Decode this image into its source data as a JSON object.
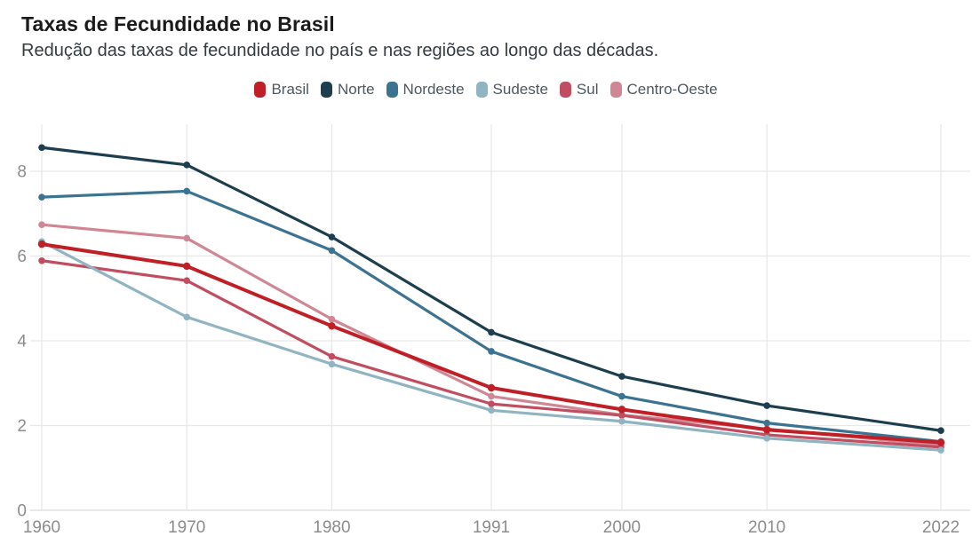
{
  "chart_data": {
    "type": "line",
    "title": "Taxas de Fecundidade no Brasil",
    "subtitle": "Redução das taxas de fecundidade no país e nas regiões ao longo das décadas.",
    "x": [
      1960,
      1970,
      1980,
      1991,
      2000,
      2010,
      2022
    ],
    "x_tick_labels": [
      "1960",
      "1970",
      "1980",
      "1991",
      "2000",
      "2010",
      "2022"
    ],
    "y_ticks": [
      0,
      2,
      4,
      6,
      8
    ],
    "y_tick_labels": [
      "0",
      "2",
      "4",
      "6",
      "8"
    ],
    "ylim": [
      0,
      9
    ],
    "x_axis_type": "linear",
    "grid": true,
    "markers": true,
    "legend_position": "top-center",
    "series": [
      {
        "name": "Brasil",
        "color": "#c11f26",
        "values": [
          6.28,
          5.76,
          4.35,
          2.89,
          2.38,
          1.9,
          1.6
        ]
      },
      {
        "name": "Norte",
        "color": "#1d3e4e",
        "values": [
          8.56,
          8.15,
          6.45,
          4.2,
          3.16,
          2.47,
          1.88
        ]
      },
      {
        "name": "Nordeste",
        "color": "#3b7390",
        "values": [
          7.39,
          7.53,
          6.13,
          3.75,
          2.69,
          2.06,
          1.62
        ]
      },
      {
        "name": "Sudeste",
        "color": "#90b4c1",
        "values": [
          6.34,
          4.56,
          3.45,
          2.36,
          2.1,
          1.7,
          1.42
        ]
      },
      {
        "name": "Sul",
        "color": "#c04e60",
        "values": [
          5.89,
          5.42,
          3.63,
          2.51,
          2.24,
          1.78,
          1.49
        ]
      },
      {
        "name": "Centro-Oeste",
        "color": "#d08795",
        "values": [
          6.74,
          6.42,
          4.51,
          2.69,
          2.25,
          1.92,
          1.53
        ]
      }
    ]
  },
  "colors": {
    "background": "#ffffff",
    "grid": "#e8e8e8",
    "axis_line": "#dcdcdc",
    "tick_label": "#8c8c8c",
    "title": "#1b1b1b",
    "subtitle": "#343c42",
    "legend_text": "#4c5860"
  }
}
